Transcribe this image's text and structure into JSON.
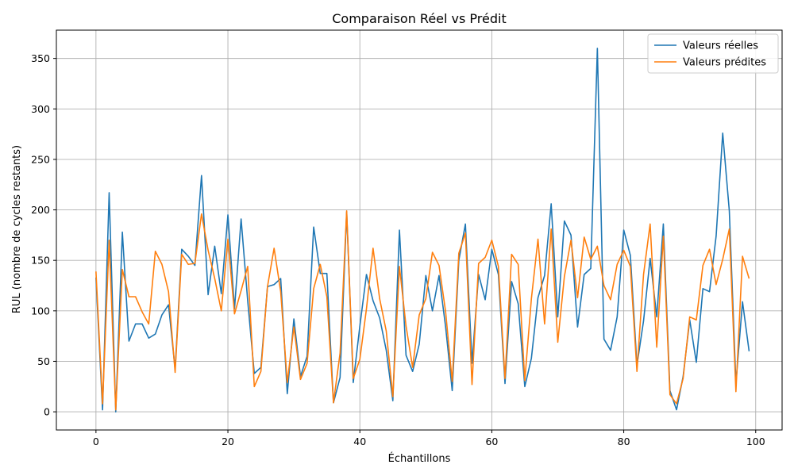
{
  "chart_data": {
    "type": "line",
    "title": "Comparaison Réel vs Prédit",
    "xlabel": "Échantillons",
    "ylabel": "RUL (nombre de cycles restants)",
    "xlim": [
      -6,
      104
    ],
    "ylim": [
      -18,
      378
    ],
    "xticks": [
      0,
      20,
      40,
      60,
      80,
      100
    ],
    "yticks": [
      0,
      50,
      100,
      150,
      200,
      250,
      300,
      350
    ],
    "grid": true,
    "legend_position": "top-right",
    "x": [
      0,
      1,
      2,
      3,
      4,
      5,
      6,
      7,
      8,
      9,
      10,
      11,
      12,
      13,
      14,
      15,
      16,
      17,
      18,
      19,
      20,
      21,
      22,
      23,
      24,
      25,
      26,
      27,
      28,
      29,
      30,
      31,
      32,
      33,
      34,
      35,
      36,
      37,
      38,
      39,
      40,
      41,
      42,
      43,
      44,
      45,
      46,
      47,
      48,
      49,
      50,
      51,
      52,
      53,
      54,
      55,
      56,
      57,
      58,
      59,
      60,
      61,
      62,
      63,
      64,
      65,
      66,
      67,
      68,
      69,
      70,
      71,
      72,
      73,
      74,
      75,
      76,
      77,
      78,
      79,
      80,
      81,
      82,
      83,
      84,
      85,
      86,
      87,
      88,
      89,
      90,
      91,
      92,
      93,
      94,
      95,
      96,
      97,
      98,
      99
    ],
    "series": [
      {
        "name": "Valeurs réelles",
        "color": "#1f77b4",
        "values": [
          133,
          2,
          217,
          0,
          178,
          70,
          87,
          87,
          73,
          77,
          96,
          106,
          42,
          161,
          154,
          145,
          234,
          116,
          164,
          117,
          195,
          102,
          191,
          110,
          38,
          44,
          124,
          126,
          132,
          18,
          92,
          35,
          55,
          183,
          137,
          137,
          9,
          34,
          198,
          29,
          85,
          136,
          110,
          93,
          61,
          11,
          180,
          56,
          40,
          67,
          135,
          100,
          135,
          84,
          21,
          150,
          186,
          48,
          136,
          111,
          161,
          136,
          28,
          129,
          107,
          25,
          53,
          113,
          135,
          206,
          94,
          189,
          175,
          84,
          136,
          142,
          360,
          72,
          61,
          94,
          180,
          155,
          46,
          90,
          152,
          94,
          186,
          21,
          2,
          35,
          91,
          49,
          122,
          119,
          174,
          276,
          199,
          28,
          109,
          60
        ]
      },
      {
        "name": "Valeurs prédites",
        "color": "#ff7f0e",
        "values": [
          139,
          8,
          170,
          2,
          141,
          114,
          114,
          99,
          87,
          159,
          146,
          119,
          39,
          156,
          146,
          147,
          196,
          160,
          132,
          100,
          171,
          97,
          120,
          144,
          25,
          40,
          124,
          162,
          119,
          29,
          84,
          32,
          48,
          122,
          146,
          114,
          9,
          58,
          199,
          33,
          52,
          102,
          162,
          112,
          80,
          15,
          144,
          85,
          44,
          96,
          112,
          158,
          145,
          99,
          30,
          157,
          177,
          27,
          147,
          153,
          170,
          144,
          33,
          156,
          146,
          31,
          112,
          171,
          87,
          181,
          69,
          134,
          170,
          113,
          173,
          151,
          164,
          125,
          111,
          146,
          160,
          144,
          40,
          136,
          186,
          64,
          174,
          17,
          8,
          33,
          94,
          91,
          145,
          161,
          126,
          151,
          181,
          20,
          154,
          132
        ]
      }
    ]
  }
}
